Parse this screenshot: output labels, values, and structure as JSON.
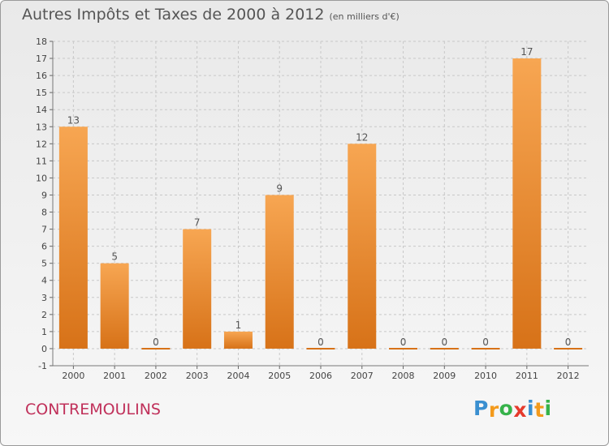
{
  "header": {
    "title": "Autres Impôts et Taxes de 2000 à 2012",
    "unit": "(en milliers d'€)"
  },
  "footer": {
    "town": "CONTREMOULINS"
  },
  "logo": {
    "letters": [
      "P",
      "r",
      "o",
      "x",
      "i",
      "t",
      "i"
    ],
    "colors": [
      "#3a8fd0",
      "#f39a1c",
      "#36b24a",
      "#e53a2c",
      "#3a8fd0",
      "#f39a1c",
      "#36b24a"
    ]
  },
  "colors": {
    "bar_light": "#f7a652",
    "bar_dark": "#d77218",
    "grid": "#c8c8c8"
  },
  "chart_data": {
    "type": "bar",
    "categories": [
      "2000",
      "2001",
      "2002",
      "2003",
      "2004",
      "2005",
      "2006",
      "2007",
      "2008",
      "2009",
      "2010",
      "2011",
      "2012"
    ],
    "values": [
      13,
      5,
      0,
      7,
      1,
      9,
      0,
      12,
      0,
      0,
      0,
      17,
      0
    ],
    "ylim": [
      -1,
      18
    ],
    "yticks": [
      -1,
      0,
      1,
      2,
      3,
      4,
      5,
      6,
      7,
      8,
      9,
      10,
      11,
      12,
      13,
      14,
      15,
      16,
      17,
      18
    ],
    "grid": "horizontal dashed"
  }
}
